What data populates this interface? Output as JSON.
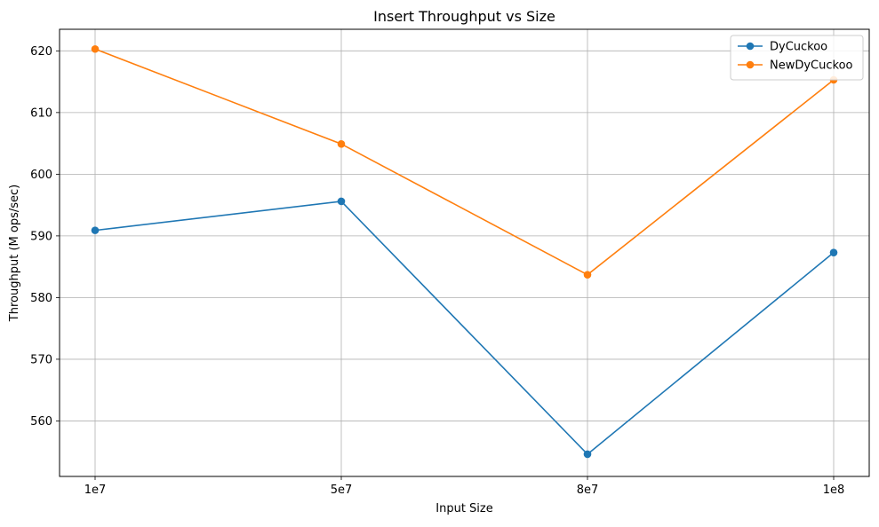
{
  "chart_data": {
    "type": "line",
    "title": "Insert Throughput vs Size",
    "xlabel": "Input Size",
    "ylabel": "Throughput (M ops/sec)",
    "categories": [
      "1e7",
      "5e7",
      "8e7",
      "1e8"
    ],
    "ylim": [
      551.0,
      623.5
    ],
    "yticks": [
      560,
      570,
      580,
      590,
      600,
      610,
      620
    ],
    "grid": true,
    "legend_position": "top-right",
    "series": [
      {
        "name": "DyCuckoo",
        "color": "#1f77b4",
        "marker": "circle",
        "values": [
          590.9,
          595.6,
          554.6,
          587.3
        ]
      },
      {
        "name": "NewDyCuckoo",
        "color": "#ff7f0e",
        "marker": "circle",
        "values": [
          620.3,
          604.9,
          583.7,
          615.3
        ]
      }
    ]
  }
}
